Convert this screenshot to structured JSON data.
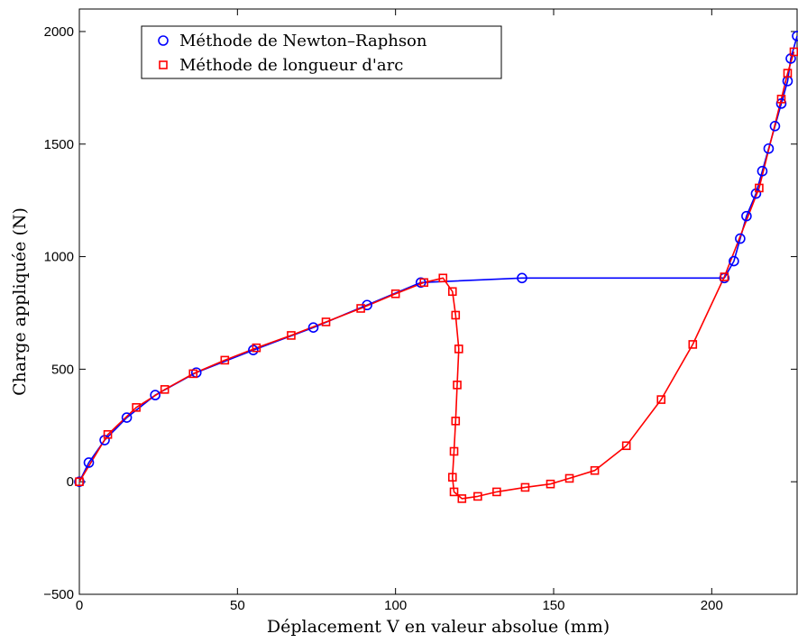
{
  "chart_data": {
    "type": "line",
    "xlabel": "Déplacement V en valeur absolue (mm)",
    "ylabel": "Charge appliquée (N)",
    "xlim": [
      0,
      227
    ],
    "ylim": [
      -500,
      2100
    ],
    "xticks": [
      0,
      50,
      100,
      150,
      200
    ],
    "yticks": [
      -500,
      0,
      500,
      1000,
      1500,
      2000
    ],
    "grid": false,
    "legend_position": "top-left",
    "series": [
      {
        "name": "Méthode de Newton–Raphson",
        "color": "#0000ff",
        "marker": "circle",
        "x": [
          0,
          3,
          8,
          15,
          24,
          37,
          55,
          74,
          91,
          108,
          140,
          204,
          207,
          209,
          211,
          214,
          216,
          218,
          220,
          222,
          224,
          225,
          227
        ],
        "y": [
          0,
          85,
          185,
          285,
          385,
          485,
          585,
          685,
          785,
          885,
          905,
          905,
          980,
          1080,
          1180,
          1280,
          1380,
          1480,
          1580,
          1680,
          1780,
          1880,
          1980
        ]
      },
      {
        "name": "Méthode de longueur d'arc",
        "color": "#ff0000",
        "marker": "square",
        "x": [
          0,
          9,
          18,
          27,
          36,
          46,
          56,
          67,
          78,
          89,
          100,
          109,
          115,
          118,
          119,
          120,
          119.5,
          119,
          118.5,
          118,
          118.5,
          121,
          126,
          132,
          141,
          149,
          155,
          163,
          173,
          184,
          194,
          204,
          215,
          222,
          224,
          226
        ],
        "y": [
          0,
          210,
          330,
          410,
          480,
          540,
          595,
          650,
          710,
          770,
          835,
          885,
          905,
          845,
          740,
          590,
          430,
          270,
          135,
          20,
          -45,
          -75,
          -65,
          -45,
          -25,
          -10,
          15,
          50,
          160,
          365,
          610,
          910,
          1305,
          1700,
          1815,
          1910
        ]
      }
    ]
  }
}
